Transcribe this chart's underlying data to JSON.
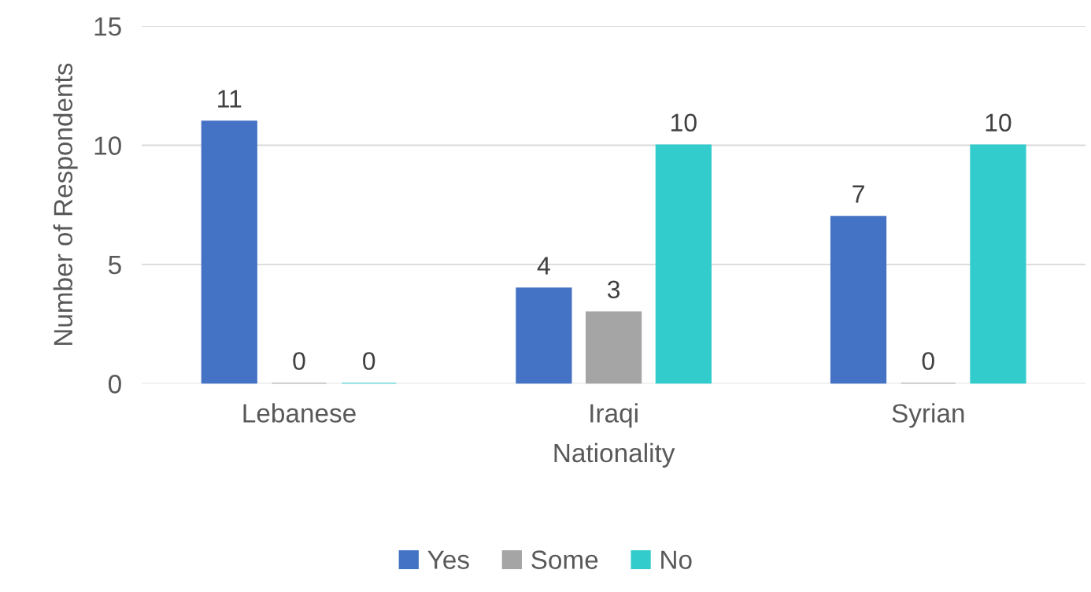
{
  "chart_data": {
    "type": "bar",
    "xlabel": "Nationality",
    "ylabel": "Number of Respondents",
    "categories": [
      "Lebanese",
      "Iraqi",
      "Syrian"
    ],
    "series": [
      {
        "name": "Yes",
        "color": "#4472c4",
        "values": [
          11,
          4,
          7
        ]
      },
      {
        "name": "Some",
        "color": "#a5a5a5",
        "values": [
          0,
          3,
          0
        ]
      },
      {
        "name": "No",
        "color": "#33cccc",
        "values": [
          0,
          10,
          10
        ]
      }
    ],
    "ylim": [
      0,
      15
    ],
    "yticks": [
      0,
      5,
      10,
      15
    ],
    "grid": "y",
    "legend": "bottom",
    "data_labels": true
  }
}
